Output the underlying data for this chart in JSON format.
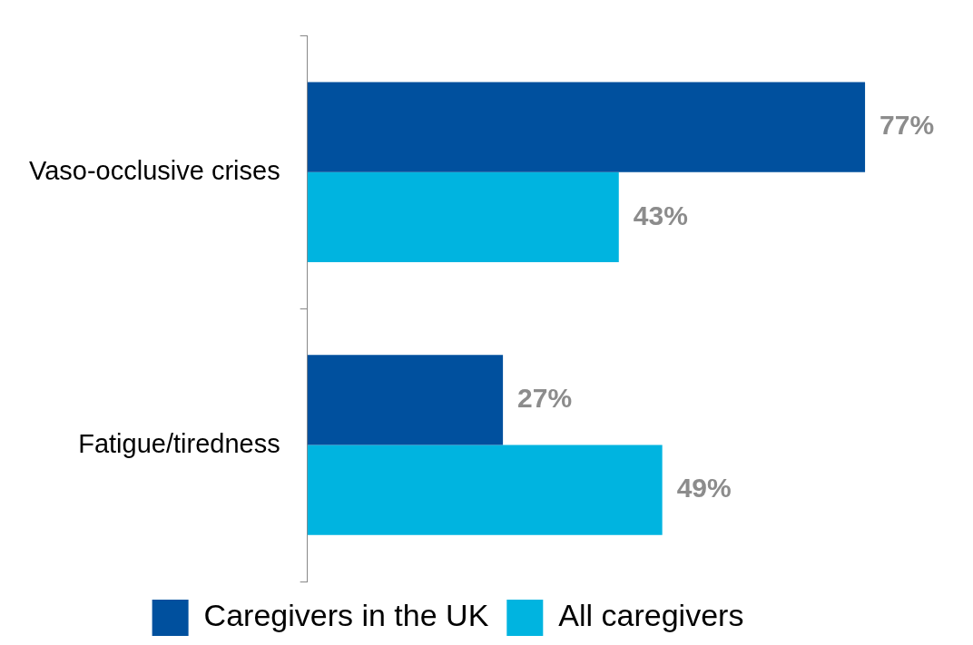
{
  "chart_data": {
    "type": "bar",
    "orientation": "horizontal",
    "categories": [
      "Vaso-occlusive crises",
      "Fatigue/tiredness"
    ],
    "series": [
      {
        "name": "Caregivers in the UK",
        "color": "#00509e",
        "values": [
          77,
          27
        ],
        "value_labels": [
          "77%",
          "27%"
        ]
      },
      {
        "name": "All caregivers",
        "color": "#00b4e0",
        "values": [
          43,
          49
        ],
        "value_labels": [
          "43%",
          "49%"
        ]
      }
    ],
    "legend": "bottom",
    "grid": false,
    "tick_labels": "y"
  }
}
